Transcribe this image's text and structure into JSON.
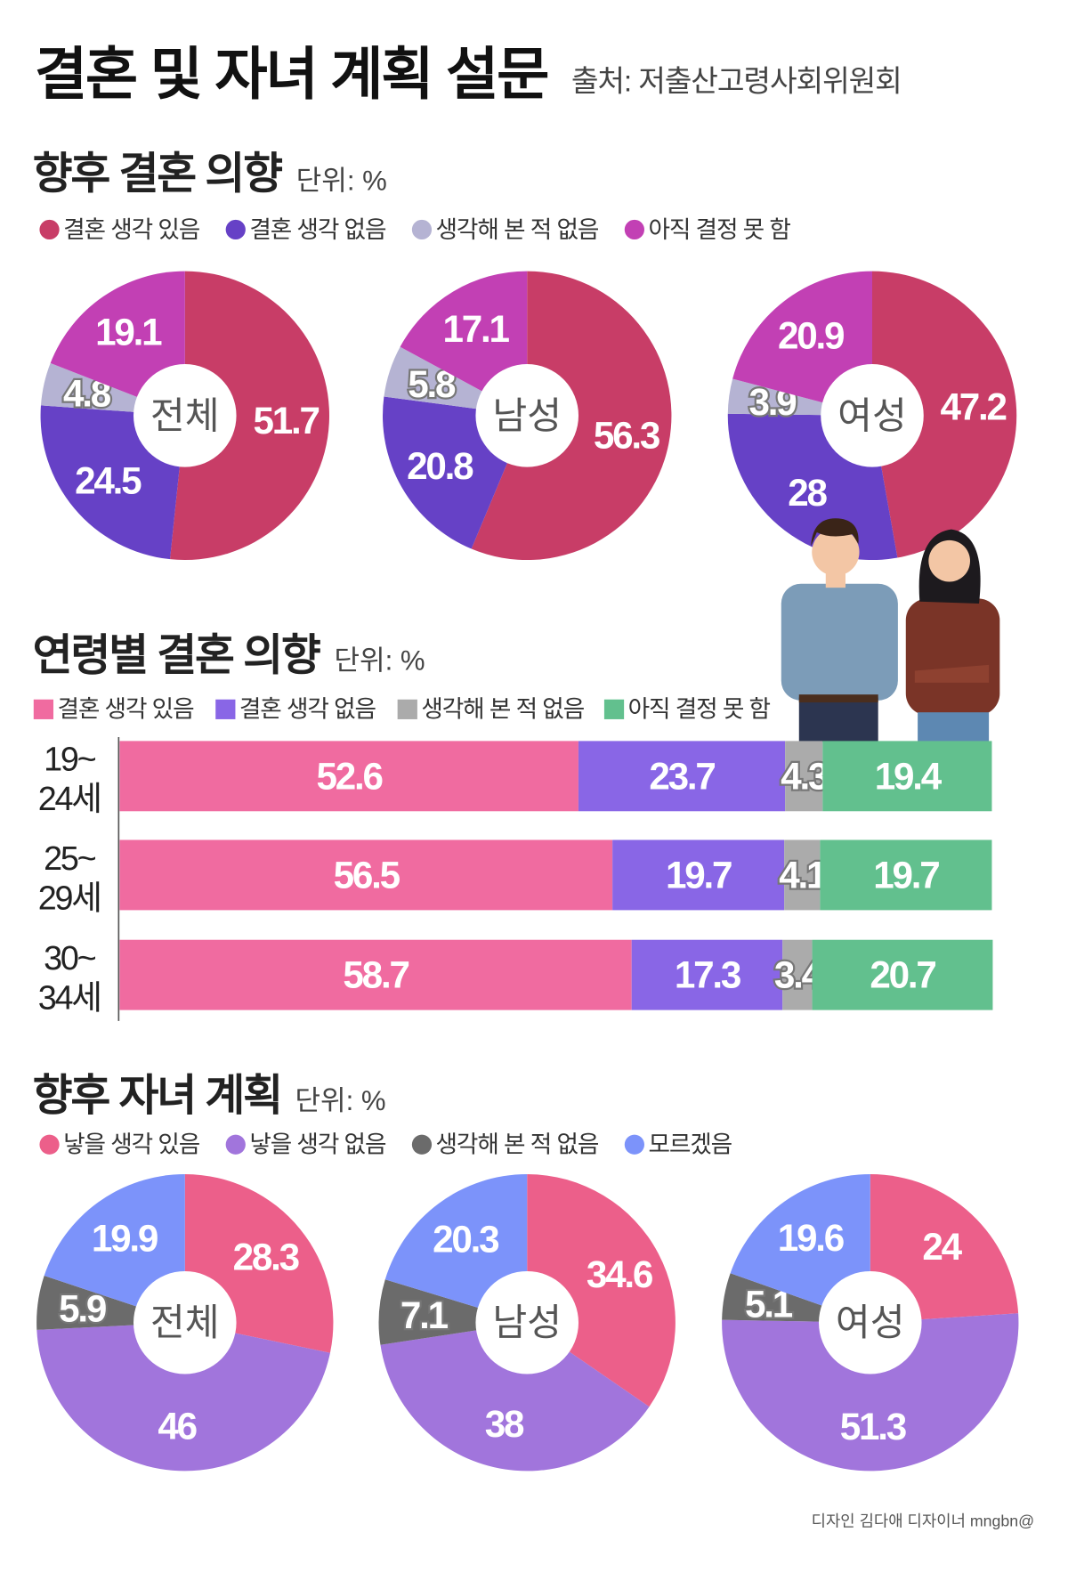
{
  "header": {
    "title": "결혼 및 자녀 계획 설문",
    "source": "출처: 저출산고령사회위원회"
  },
  "footer": {
    "credit": "디자인 김다애 디자이너 mngbn@"
  },
  "chart_data": [
    {
      "type": "pie",
      "title": "향후 결혼 의향",
      "unit": "단위: %",
      "legend": [
        "결혼 생각 있음",
        "결혼 생각 없음",
        "생각해 본 적 없음",
        "아직 결정 못 함"
      ],
      "colors": [
        "#C83D67",
        "#6641C6",
        "#B5B3D3",
        "#C240B4"
      ],
      "groups": [
        {
          "name": "전체",
          "values": [
            51.7,
            24.5,
            4.8,
            19.1
          ]
        },
        {
          "name": "남성",
          "values": [
            56.3,
            20.8,
            5.8,
            17.1
          ]
        },
        {
          "name": "여성",
          "values": [
            47.2,
            28,
            3.9,
            20.9
          ]
        }
      ]
    },
    {
      "type": "bar",
      "stacked": true,
      "orientation": "horizontal",
      "title": "연령별 결혼 의향",
      "unit": "단위: %",
      "legend": [
        "결혼 생각 있음",
        "결혼 생각 없음",
        "생각해 본 적 없음",
        "아직 결정 못 함"
      ],
      "colors": [
        "#F06BA0",
        "#8966E6",
        "#ABABAB",
        "#62C08E"
      ],
      "categories": [
        [
          "19~",
          "24세"
        ],
        [
          "25~",
          "29세"
        ],
        [
          "30~",
          "34세"
        ]
      ],
      "rows": [
        [
          52.6,
          23.7,
          4.3,
          19.4
        ],
        [
          56.5,
          19.7,
          4.1,
          19.7
        ],
        [
          58.7,
          17.3,
          3.4,
          20.7
        ]
      ]
    },
    {
      "type": "pie",
      "title": "향후 자녀 계획",
      "unit": "단위: %",
      "legend": [
        "낳을 생각 있음",
        "낳을 생각 없음",
        "생각해 본 적 없음",
        "모르겠음"
      ],
      "colors": [
        "#EC5F8A",
        "#A175DC",
        "#6B6B6B",
        "#7C93FA"
      ],
      "groups": [
        {
          "name": "전체",
          "values": [
            28.3,
            46,
            5.9,
            19.9
          ]
        },
        {
          "name": "남성",
          "values": [
            34.6,
            38,
            7.1,
            20.3
          ]
        },
        {
          "name": "여성",
          "values": [
            24,
            51.3,
            5.1,
            19.6
          ]
        }
      ]
    }
  ]
}
